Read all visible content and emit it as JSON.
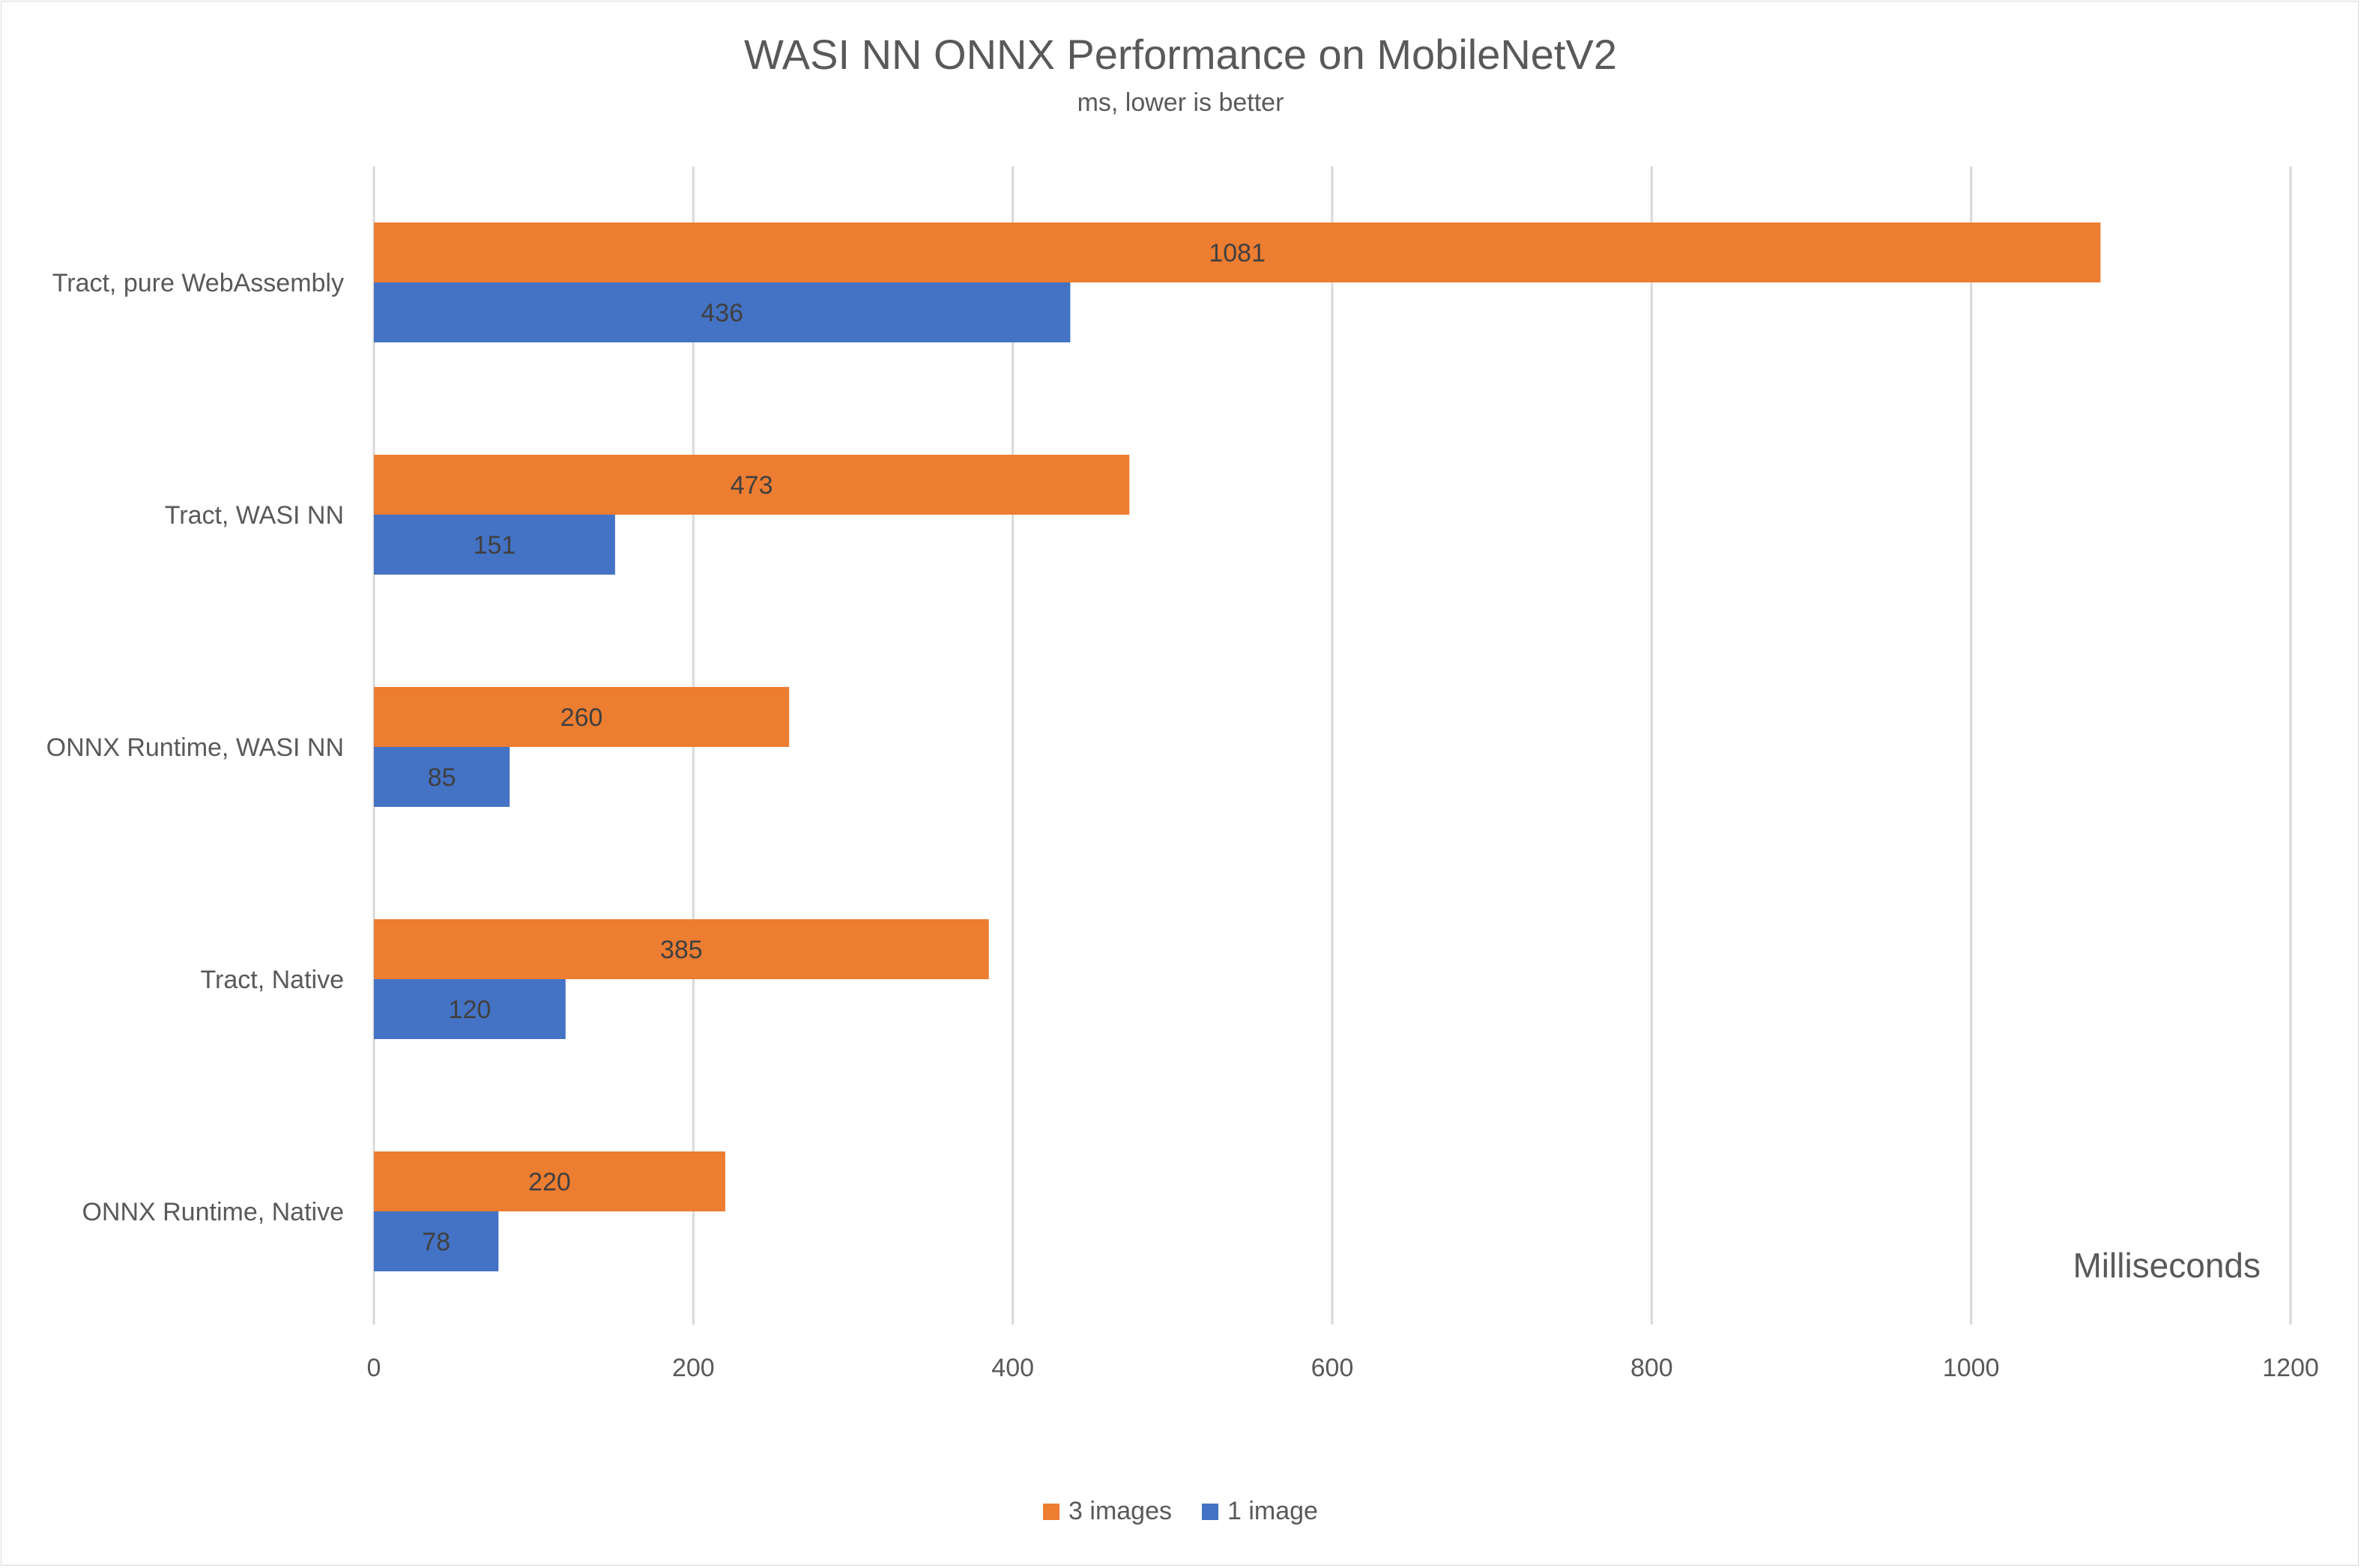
{
  "chart_data": {
    "type": "bar",
    "orientation": "horizontal",
    "title": "WASI NN ONNX Performance on MobileNetV2",
    "subtitle": "ms, lower is better",
    "xlabel": "Milliseconds",
    "categories": [
      "Tract, pure WebAssembly",
      "Tract, WASI NN",
      "ONNX Runtime, WASI NN",
      "Tract, Native",
      "ONNX Runtime, Native"
    ],
    "series": [
      {
        "name": "3 images",
        "color": "#ed7d31",
        "values": [
          1081,
          473,
          260,
          385,
          220
        ]
      },
      {
        "name": "1 image",
        "color": "#4472c4",
        "values": [
          436,
          151,
          85,
          120,
          78
        ]
      }
    ],
    "xlim": [
      0,
      1200
    ],
    "xticks": [
      0,
      200,
      400,
      600,
      800,
      1000,
      1200
    ],
    "grid": true,
    "legend_position": "bottom",
    "data_labels": true
  }
}
